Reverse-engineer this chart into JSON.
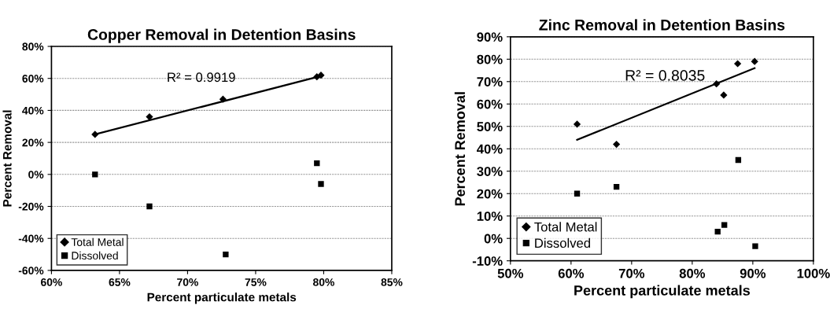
{
  "chart_data": [
    {
      "type": "scatter",
      "title": "Copper Removal in Detention Basins",
      "xlabel": "Percent particulate metals",
      "ylabel": "Percent Removal",
      "xlim": [
        60,
        85
      ],
      "xticks": [
        {
          "value": 60,
          "label": "60%"
        },
        {
          "value": 65,
          "label": "65%"
        },
        {
          "value": 70,
          "label": "70%"
        },
        {
          "value": 75,
          "label": "75%"
        },
        {
          "value": 80,
          "label": "80%"
        },
        {
          "value": 85,
          "label": "85%"
        }
      ],
      "ylim": [
        -60,
        80
      ],
      "yticks": [
        {
          "value": -60,
          "label": "-60%"
        },
        {
          "value": -40,
          "label": "-40%"
        },
        {
          "value": -20,
          "label": "-20%"
        },
        {
          "value": 0,
          "label": "0%"
        },
        {
          "value": 20,
          "label": "20%"
        },
        {
          "value": 40,
          "label": "40%"
        },
        {
          "value": 60,
          "label": "60%"
        },
        {
          "value": 80,
          "label": "80%"
        }
      ],
      "grid": "y",
      "legend": "bottom left",
      "series": [
        {
          "name": "Total Metal",
          "color": "#000000",
          "marker": "diamond",
          "x": [
            63.2,
            67.2,
            72.6,
            79.5,
            79.8
          ],
          "values": [
            25,
            36,
            47,
            61,
            62
          ]
        },
        {
          "name": "Dissolved",
          "color": "#000000",
          "marker": "square",
          "x": [
            63.2,
            67.2,
            72.8,
            79.5,
            79.8
          ],
          "values": [
            0,
            -20,
            -50,
            7,
            -6
          ]
        },
        {
          "type": "line",
          "color": "#000000",
          "x": [
            63.2,
            79.8
          ],
          "values": [
            25,
            61.5
          ]
        }
      ],
      "annotations": [
        "R² = 0.9919"
      ]
    },
    {
      "type": "scatter",
      "title": "Zinc Removal in Detention Basins",
      "xlabel": "Percent particulate metals",
      "ylabel": "Percent Removal",
      "xlim": [
        50,
        100
      ],
      "xticks": [
        {
          "value": 50,
          "label": "50%"
        },
        {
          "value": 60,
          "label": "60%"
        },
        {
          "value": 70,
          "label": "70%"
        },
        {
          "value": 80,
          "label": "80%"
        },
        {
          "value": 90,
          "label": "90%"
        },
        {
          "value": 100,
          "label": "100%"
        }
      ],
      "ylim": [
        -10,
        90
      ],
      "yticks": [
        {
          "value": -10,
          "label": "-10%"
        },
        {
          "value": 0,
          "label": "0%"
        },
        {
          "value": 10,
          "label": "10%"
        },
        {
          "value": 20,
          "label": "20%"
        },
        {
          "value": 30,
          "label": "30%"
        },
        {
          "value": 40,
          "label": "40%"
        },
        {
          "value": 50,
          "label": "50%"
        },
        {
          "value": 60,
          "label": "60%"
        },
        {
          "value": 70,
          "label": "70%"
        },
        {
          "value": 80,
          "label": "80%"
        },
        {
          "value": 90,
          "label": "90%"
        }
      ],
      "grid": "y",
      "legend": "bottom left",
      "series": [
        {
          "name": "Total Metal",
          "color": "#000000",
          "marker": "diamond",
          "x": [
            61,
            67.5,
            84,
            85.2,
            87.5,
            90.3
          ],
          "values": [
            51,
            42,
            69,
            64,
            78,
            79
          ]
        },
        {
          "name": "Dissolved",
          "color": "#000000",
          "marker": "square",
          "x": [
            61,
            67.5,
            84.2,
            85.3,
            87.6,
            90.4
          ],
          "values": [
            20,
            23,
            3,
            6,
            35,
            -3.5
          ]
        },
        {
          "type": "line",
          "color": "#000000",
          "x": [
            61,
            90.3
          ],
          "values": [
            44,
            76
          ]
        }
      ],
      "annotations": [
        "R² = 0.8035"
      ]
    }
  ]
}
